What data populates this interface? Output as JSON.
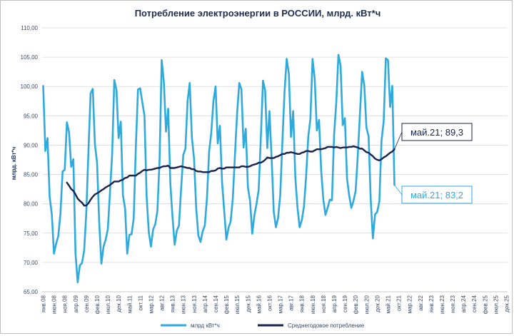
{
  "chart_data": {
    "type": "line",
    "title": "Потребление электроэнергии  в РОССИИ, млрд. кВт*ч",
    "ylabel": "млрд. кВт*ч",
    "xlabel": "",
    "ylim": [
      65,
      110
    ],
    "yticks": [
      "65,00",
      "70,00",
      "75,00",
      "80,00",
      "85,00",
      "90,00",
      "95,00",
      "100,00",
      "105,00",
      "110,00"
    ],
    "xticks": [
      "янв.08",
      "июн.08",
      "ноя.08",
      "апр.09",
      "сен.09",
      "фев.10",
      "июл.10",
      "дек.10",
      "май.11",
      "окт.11",
      "мар.12",
      "авг.12",
      "янв.13",
      "июн.13",
      "ноя.13",
      "апр.14",
      "сен.14",
      "фев.15",
      "июл.15",
      "дек.15",
      "май.16",
      "окт.16",
      "мар.17",
      "авг.17",
      "янв.18",
      "июн.18",
      "ноя.18",
      "апр.19",
      "сен.19",
      "фев.20",
      "июл.20",
      "дек.20",
      "май.21",
      "окт.21",
      "мар.22",
      "авг.22",
      "янв.23",
      "июн.23",
      "ноя.23",
      "апр.24",
      "сен.24",
      "фев.25",
      "июл.25",
      "дек.25"
    ],
    "grid": true,
    "legend_position": "bottom",
    "x_start": "янв.08",
    "x_end": "дек.25",
    "series": [
      {
        "name": "млрд кВт*ч",
        "color": "#2eaadc",
        "values": [
          100.1,
          89.0,
          91.2,
          81.2,
          78.2,
          71.5,
          73.2,
          74.5,
          78.3,
          85.5,
          85.8,
          93.9,
          92.2,
          86.3,
          87.6,
          71.5,
          66.6,
          69.5,
          69.9,
          72.0,
          78.5,
          89.0,
          98.8,
          99.6,
          90.2,
          87.0,
          76.8,
          69.8,
          72.7,
          73.9,
          75.7,
          82.0,
          88.5,
          101.1,
          99.4,
          91.2,
          94.0,
          81.5,
          79.2,
          71.5,
          74.7,
          74.8,
          77.5,
          89.8,
          99.5,
          99.7,
          97.3,
          95.0,
          81.2,
          75.2,
          72.7,
          75.6,
          76.5,
          78.8,
          87.4,
          104.5,
          100.7,
          92.3,
          96.2,
          83.5,
          77.8,
          73.0,
          75.4,
          76.3,
          82.5,
          88.3,
          89.4,
          97.5,
          100.6,
          91.3,
          87.7,
          79.3,
          74.6,
          73.5,
          75.3,
          76.3,
          81.0,
          88.9,
          92.1,
          97.5,
          100.0,
          90.3,
          93.3,
          83.7,
          78.8,
          73.9,
          75.9,
          77.0,
          81.0,
          88.4,
          95.5,
          100.6,
          99.5,
          89.6,
          92.8,
          82.8,
          80.5,
          74.9,
          78.0,
          80.0,
          82.4,
          91.3,
          101.0,
          99.3,
          89.5,
          95.8,
          87.8,
          78.6,
          76.0,
          77.6,
          81.5,
          90.6,
          99.1,
          104.7,
          102.2,
          91.4,
          95.8,
          84.5,
          79.4,
          76.0,
          77.2,
          79.5,
          84.6,
          91.4,
          94.5,
          104.7,
          101.3,
          92.5,
          94.3,
          85.7,
          80.7,
          78.1,
          79.3,
          80.7,
          80.6,
          91.8,
          97.2,
          105.4,
          103.6,
          93.4,
          94.6,
          84.3,
          81.4,
          79.3,
          80.5,
          82.2,
          88.3,
          95.4,
          102.5,
          100.2,
          93.0,
          91.5,
          80.7,
          74.1,
          78.2,
          78.6,
          80.4,
          90.8,
          94.0,
          104.8,
          104.5,
          96.5,
          100.1,
          83.2
        ]
      },
      {
        "name": "Среднегодовое потребление",
        "color": "#17224d",
        "values": [
          null,
          null,
          null,
          null,
          null,
          null,
          null,
          null,
          null,
          null,
          null,
          83.6,
          83.1,
          82.5,
          82.2,
          81.6,
          80.9,
          80.5,
          80.2,
          79.7,
          79.7,
          80.1,
          80.7,
          81.2,
          81.6,
          81.8,
          82.0,
          82.3,
          82.5,
          82.8,
          83.0,
          83.2,
          83.5,
          83.8,
          83.8,
          83.8,
          84.0,
          84.1,
          84.4,
          84.5,
          84.8,
          84.8,
          84.8,
          84.8,
          85.1,
          85.3,
          85.6,
          85.8,
          85.7,
          85.8,
          85.8,
          85.9,
          86.0,
          86.1,
          86.1,
          86.3,
          86.4,
          86.4,
          86.5,
          86.1,
          86.1,
          86.1,
          86.2,
          86.3,
          86.4,
          86.3,
          86.2,
          86.1,
          86.1,
          85.9,
          85.9,
          85.6,
          85.5,
          85.5,
          85.4,
          85.4,
          85.4,
          85.4,
          85.6,
          85.6,
          85.7,
          86.0,
          86.1,
          86.0,
          86.0,
          86.2,
          86.2,
          86.2,
          86.2,
          86.2,
          86.2,
          86.2,
          86.4,
          86.4,
          86.3,
          86.3,
          86.4,
          86.6,
          86.7,
          86.8,
          87.0,
          87.0,
          87.2,
          87.5,
          87.9,
          87.8,
          87.8,
          87.8,
          88.0,
          88.1,
          88.3,
          88.5,
          88.5,
          88.7,
          88.7,
          88.8,
          88.7,
          88.6,
          88.5,
          88.5,
          88.7,
          88.8,
          89.0,
          89.0,
          88.9,
          88.9,
          89.1,
          89.3,
          89.3,
          89.3,
          89.4,
          89.5,
          89.7,
          89.7,
          89.7,
          89.6,
          89.7,
          89.6,
          89.5,
          89.6,
          89.6,
          89.6,
          89.7,
          89.7,
          89.8,
          89.7,
          89.6,
          89.4,
          89.4,
          89.1,
          88.8,
          88.7,
          88.4,
          88.1,
          87.7,
          87.5,
          87.4,
          87.6,
          87.9,
          88.1,
          88.4,
          88.7,
          88.9,
          89.3
        ]
      }
    ],
    "callouts": [
      {
        "text": "май.21; 89,3",
        "series": 1,
        "border": "#17224d",
        "color": "#17224d"
      },
      {
        "text": "май.21; 83,2",
        "series": 0,
        "border": "#2eaadc",
        "color": "#2eaadc"
      }
    ]
  }
}
